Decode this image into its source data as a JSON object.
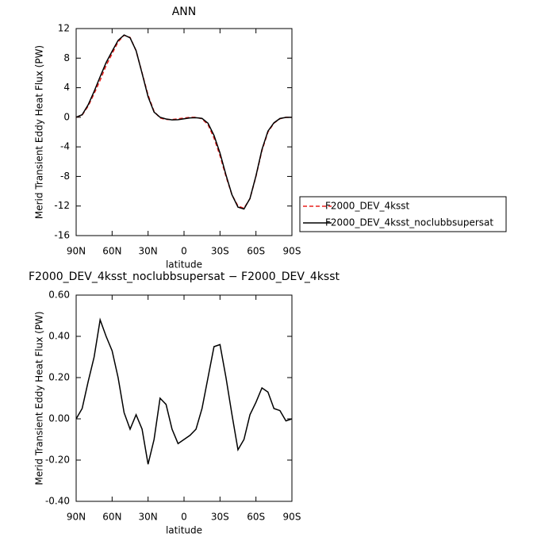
{
  "chart_data": [
    {
      "type": "line",
      "title": "ANN",
      "xlabel": "latitude",
      "ylabel": "Merid Transient Eddy Heat Flux (PW)",
      "x": [
        90,
        85,
        80,
        75,
        70,
        65,
        60,
        55,
        50,
        45,
        40,
        35,
        30,
        25,
        20,
        15,
        10,
        5,
        0,
        -5,
        -10,
        -15,
        -20,
        -25,
        -30,
        -35,
        -40,
        -45,
        -50,
        -55,
        -60,
        -65,
        -70,
        -75,
        -80,
        -85,
        -90
      ],
      "xlim": [
        90,
        -90
      ],
      "xticks": [
        {
          "value": 90,
          "label": "90N"
        },
        {
          "value": 60,
          "label": "60N"
        },
        {
          "value": 30,
          "label": "30N"
        },
        0,
        {
          "value": -30,
          "label": "30S"
        },
        {
          "value": -60,
          "label": "60S"
        },
        {
          "value": -90,
          "label": "90S"
        }
      ],
      "ylim": [
        -16,
        12
      ],
      "yticks": [
        12,
        8,
        4,
        0,
        -4,
        -8,
        -12,
        -16
      ],
      "legend": "right",
      "series": [
        {
          "name": "F2000_DEV_4ksst",
          "color": "#e8201e",
          "dash": true,
          "values": [
            0,
            0.3,
            1.5,
            3.2,
            5.0,
            7.0,
            8.6,
            10.2,
            11.1,
            10.8,
            9.0,
            6.0,
            3.0,
            0.8,
            -0.1,
            -0.3,
            -0.3,
            -0.2,
            -0.1,
            0,
            0,
            -0.2,
            -1.0,
            -2.8,
            -5.2,
            -8.0,
            -10.5,
            -12.0,
            -12.3,
            -11.0,
            -8.0,
            -4.5,
            -2.0,
            -0.8,
            -0.2,
            0,
            0
          ]
        },
        {
          "name": "F2000_DEV_4ksst_noclubbsupersat",
          "color": "#000000",
          "dash": false,
          "values": [
            0,
            0.35,
            1.68,
            3.5,
            5.48,
            7.4,
            8.93,
            10.4,
            11.13,
            10.75,
            9.02,
            5.95,
            2.78,
            0.7,
            0,
            -0.23,
            -0.35,
            -0.32,
            -0.2,
            -0.08,
            -0.05,
            -0.15,
            -0.8,
            -2.45,
            -4.84,
            -7.8,
            -10.48,
            -12.15,
            -12.4,
            -10.98,
            -7.92,
            -4.35,
            -1.87,
            -0.75,
            -0.16,
            -0.01,
            0
          ]
        }
      ]
    },
    {
      "type": "line",
      "title": "F2000_DEV_4ksst_noclubbsupersat − F2000_DEV_4ksst",
      "xlabel": "latitude",
      "ylabel": "Merid Transient Eddy Heat Flux (PW)",
      "x": [
        90,
        85,
        80,
        75,
        70,
        65,
        60,
        55,
        50,
        45,
        40,
        35,
        30,
        25,
        20,
        15,
        10,
        5,
        0,
        -5,
        -10,
        -15,
        -20,
        -25,
        -30,
        -35,
        -40,
        -45,
        -50,
        -55,
        -60,
        -65,
        -70,
        -75,
        -80,
        -85,
        -90
      ],
      "xlim": [
        90,
        -90
      ],
      "xticks": [
        {
          "value": 90,
          "label": "90N"
        },
        {
          "value": 60,
          "label": "60N"
        },
        {
          "value": 30,
          "label": "30N"
        },
        0,
        {
          "value": -30,
          "label": "30S"
        },
        {
          "value": -60,
          "label": "60S"
        },
        {
          "value": -90,
          "label": "90S"
        }
      ],
      "ylim": [
        -0.4,
        0.6
      ],
      "yticks": [
        {
          "value": 0.6,
          "label": "0.60"
        },
        {
          "value": 0.4,
          "label": "0.40"
        },
        {
          "value": 0.2,
          "label": "0.20"
        },
        {
          "value": 0,
          "label": "0.00"
        },
        {
          "value": -0.2,
          "label": "-0.20"
        },
        {
          "value": -0.4,
          "label": "-0.40"
        }
      ],
      "color": "#000000",
      "values": [
        0,
        0.05,
        0.18,
        0.3,
        0.48,
        0.4,
        0.33,
        0.2,
        0.03,
        -0.05,
        0.02,
        -0.05,
        -0.22,
        -0.1,
        0.1,
        0.07,
        -0.05,
        -0.12,
        -0.1,
        -0.08,
        -0.05,
        0.05,
        0.2,
        0.35,
        0.36,
        0.2,
        0.02,
        -0.15,
        -0.1,
        0.02,
        0.08,
        0.15,
        0.13,
        0.05,
        0.04,
        -0.01,
        0
      ]
    }
  ]
}
